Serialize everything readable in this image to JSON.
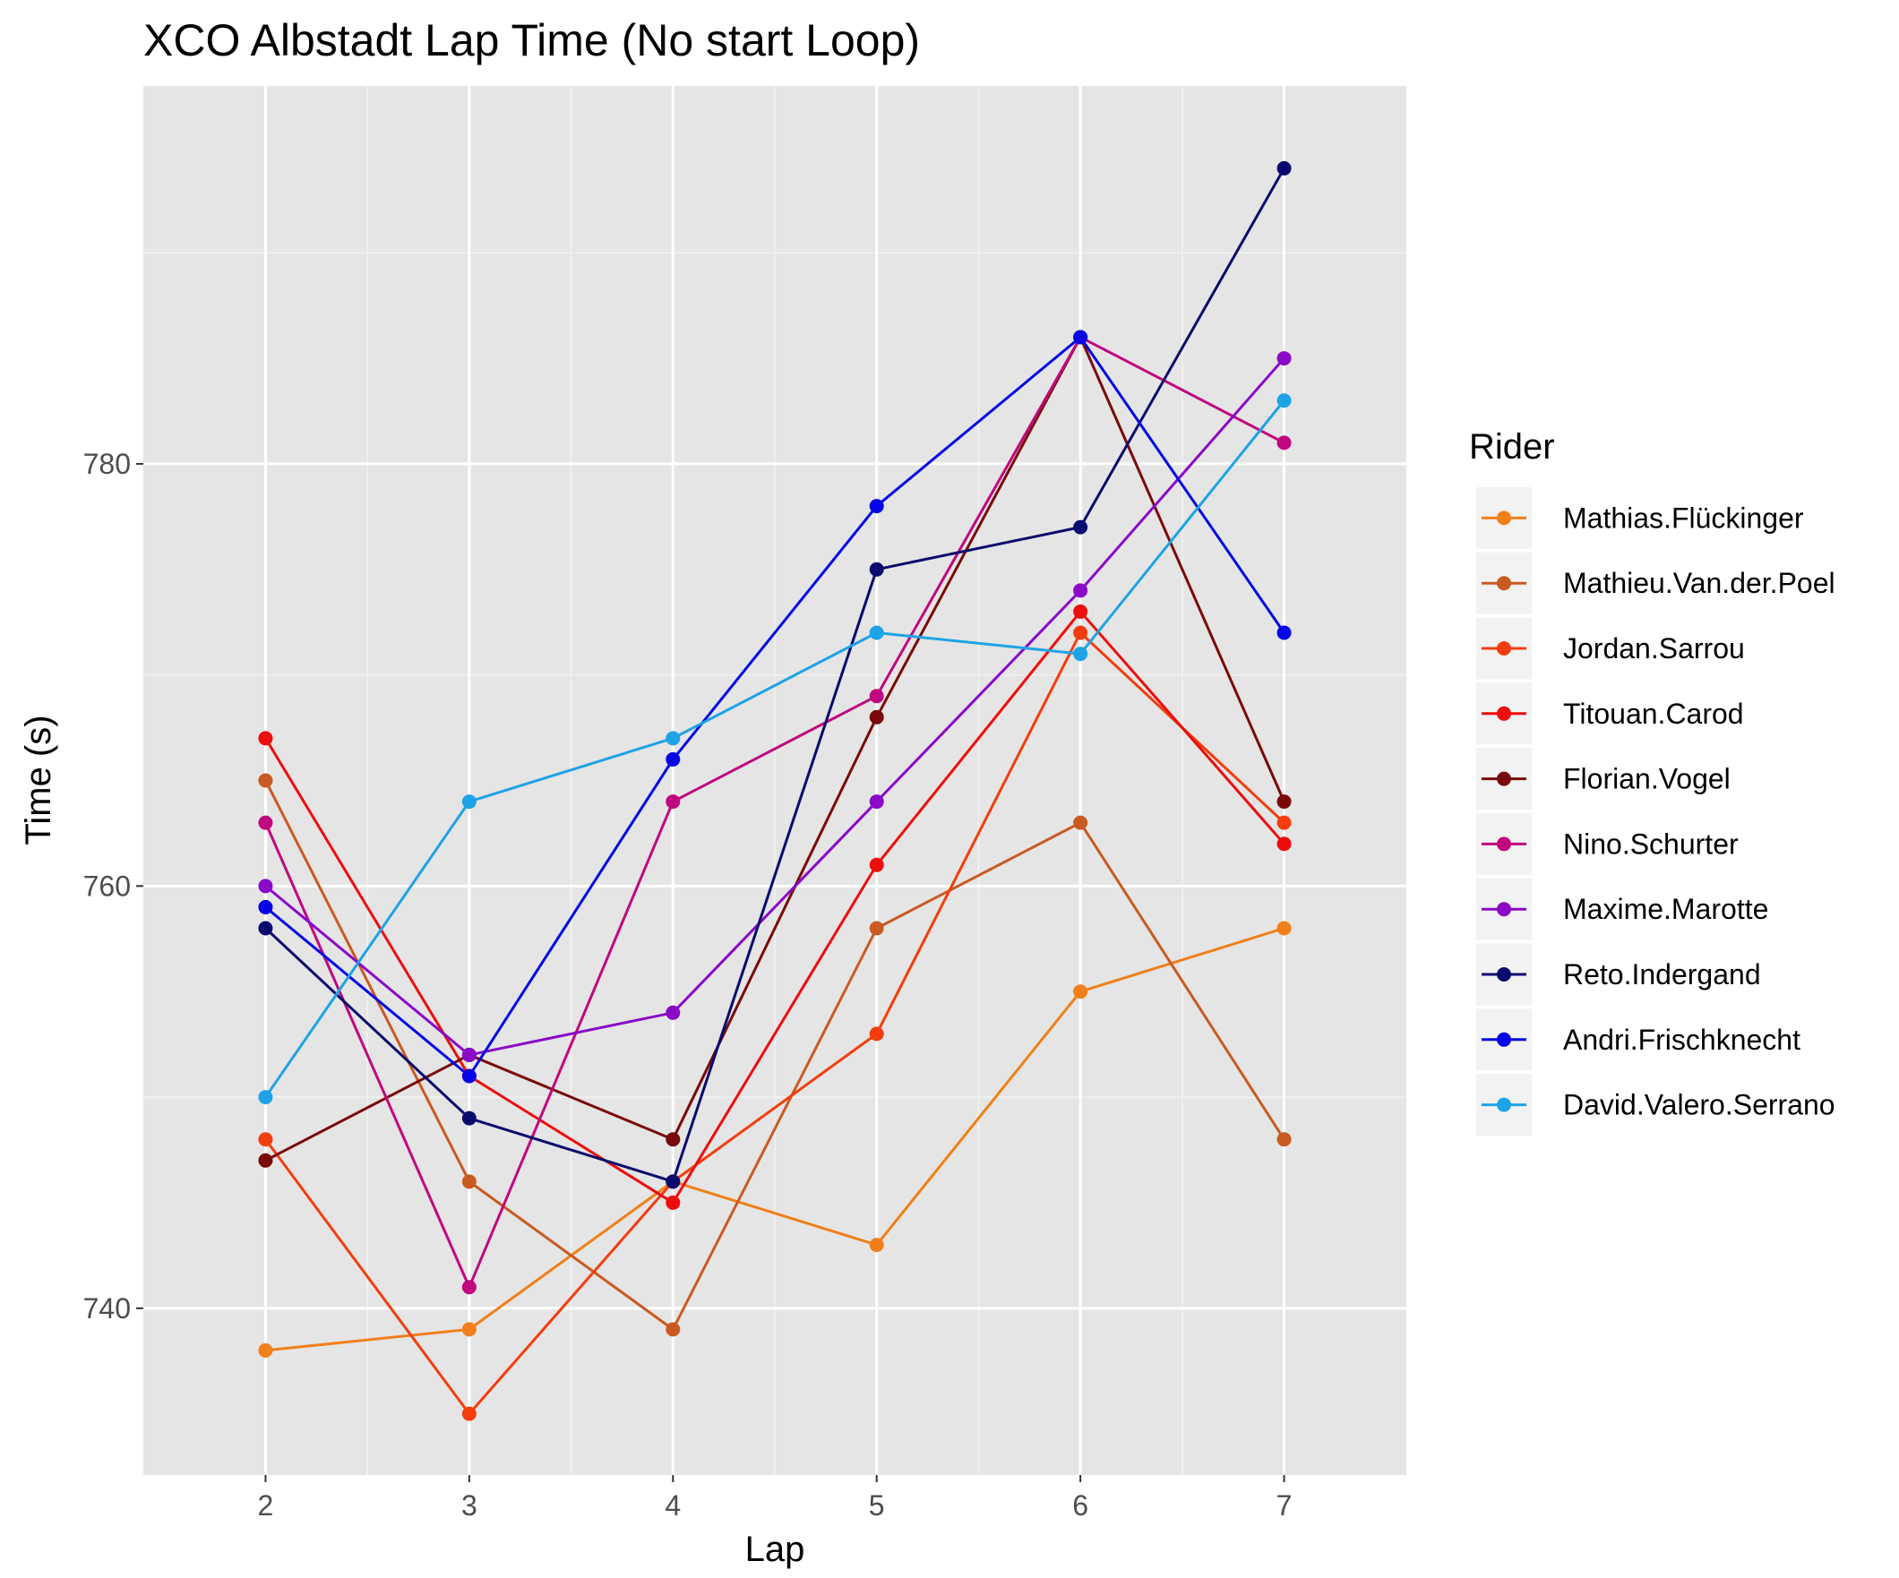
{
  "chart_data": {
    "type": "line",
    "title": "XCO Albstadt Lap Time (No start Loop)",
    "xlabel": "Lap",
    "ylabel": "Time (s)",
    "x": [
      2,
      3,
      4,
      5,
      6,
      7
    ],
    "xlim": [
      1.4,
      7.6
    ],
    "ylim": [
      732.1,
      797.9
    ],
    "y_ticks": [
      740,
      760,
      780
    ],
    "y_minor_ticks": [
      750,
      770,
      790
    ],
    "grid": true,
    "panel_background": "#e5e5e5",
    "legend_title": "Rider",
    "legend_position": "right",
    "series": [
      {
        "name": "Mathias.Flückinger",
        "color": "#f17f1a",
        "values": [
          738,
          739,
          746,
          743,
          755,
          758
        ]
      },
      {
        "name": "Mathieu.Van.der.Poel",
        "color": "#c95a21",
        "values": [
          765,
          746,
          739,
          758,
          763,
          748
        ]
      },
      {
        "name": "Jordan.Sarrou",
        "color": "#f43d0e",
        "values": [
          748,
          735,
          746,
          753,
          772,
          763
        ]
      },
      {
        "name": "Titouan.Carod",
        "color": "#ee0d0d",
        "values": [
          767,
          751,
          745,
          761,
          773,
          762
        ]
      },
      {
        "name": "Florian.Vogel",
        "color": "#7a0a0a",
        "values": [
          747,
          752,
          748,
          768,
          786,
          764
        ]
      },
      {
        "name": "Nino.Schurter",
        "color": "#c0087f",
        "values": [
          763,
          741,
          764,
          769,
          786,
          781
        ]
      },
      {
        "name": "Maxime.Marotte",
        "color": "#8a0ac8",
        "values": [
          760,
          752,
          754,
          764,
          774,
          785
        ]
      },
      {
        "name": "Reto.Indergand",
        "color": "#0a0a6e",
        "values": [
          758,
          749,
          746,
          775,
          777,
          794
        ]
      },
      {
        "name": "Andri.Frischknecht",
        "color": "#0505e6",
        "values": [
          759,
          751,
          766,
          778,
          786,
          772
        ]
      },
      {
        "name": "David.Valero.Serrano",
        "color": "#1ea3e6",
        "values": [
          750,
          764,
          767,
          772,
          771,
          783
        ]
      }
    ]
  }
}
